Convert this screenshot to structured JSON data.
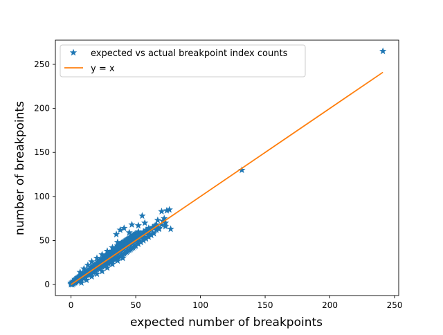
{
  "chart_data": {
    "type": "scatter",
    "title": "",
    "xlabel": "expected number of breakpoints",
    "ylabel": "number of breakpoints",
    "xlim": [
      -12.1,
      253.2
    ],
    "ylim": [
      -12.5,
      277.5
    ],
    "xticks": [
      0,
      50,
      100,
      150,
      200,
      250
    ],
    "yticks": [
      0,
      50,
      100,
      150,
      200,
      250
    ],
    "grid": false,
    "legend_position": "top-left",
    "colors": {
      "scatter": "#1f77b4",
      "line": "#ff7f0e"
    },
    "series": [
      {
        "name": "expected vs actual breakpoint index counts",
        "kind": "scatter",
        "marker": "star",
        "points": [
          [
            0,
            0
          ],
          [
            0,
            1
          ],
          [
            0,
            2
          ],
          [
            1,
            0
          ],
          [
            1,
            1
          ],
          [
            1,
            2
          ],
          [
            1,
            3
          ],
          [
            2,
            1
          ],
          [
            2,
            2
          ],
          [
            2,
            3
          ],
          [
            2,
            4
          ],
          [
            3,
            2
          ],
          [
            3,
            3
          ],
          [
            3,
            4
          ],
          [
            3,
            6
          ],
          [
            4,
            3
          ],
          [
            4,
            4
          ],
          [
            4,
            5
          ],
          [
            4,
            7
          ],
          [
            5,
            4
          ],
          [
            5,
            5
          ],
          [
            5,
            6
          ],
          [
            5,
            8
          ],
          [
            6,
            5
          ],
          [
            6,
            6
          ],
          [
            6,
            7
          ],
          [
            6,
            9
          ],
          [
            7,
            6
          ],
          [
            7,
            7
          ],
          [
            7,
            8
          ],
          [
            7,
            10
          ],
          [
            8,
            6
          ],
          [
            8,
            8
          ],
          [
            8,
            9
          ],
          [
            8,
            11
          ],
          [
            9,
            7
          ],
          [
            9,
            9
          ],
          [
            9,
            10
          ],
          [
            9,
            12
          ],
          [
            10,
            8
          ],
          [
            10,
            10
          ],
          [
            10,
            11
          ],
          [
            10,
            13
          ],
          [
            11,
            9
          ],
          [
            11,
            11
          ],
          [
            11,
            12
          ],
          [
            11,
            14
          ],
          [
            12,
            10
          ],
          [
            12,
            12
          ],
          [
            12,
            13
          ],
          [
            12,
            15
          ],
          [
            13,
            11
          ],
          [
            13,
            13
          ],
          [
            13,
            14
          ],
          [
            13,
            16
          ],
          [
            14,
            12
          ],
          [
            14,
            14
          ],
          [
            14,
            15
          ],
          [
            14,
            17
          ],
          [
            15,
            12
          ],
          [
            15,
            15
          ],
          [
            15,
            16
          ],
          [
            15,
            18
          ],
          [
            16,
            13
          ],
          [
            16,
            16
          ],
          [
            16,
            18
          ],
          [
            16,
            20
          ],
          [
            17,
            14
          ],
          [
            17,
            17
          ],
          [
            17,
            19
          ],
          [
            17,
            21
          ],
          [
            18,
            15
          ],
          [
            18,
            18
          ],
          [
            18,
            20
          ],
          [
            18,
            22
          ],
          [
            19,
            16
          ],
          [
            19,
            19
          ],
          [
            19,
            21
          ],
          [
            19,
            23
          ],
          [
            20,
            17
          ],
          [
            20,
            20
          ],
          [
            20,
            22
          ],
          [
            20,
            24
          ],
          [
            21,
            18
          ],
          [
            21,
            21
          ],
          [
            21,
            23
          ],
          [
            21,
            26
          ],
          [
            22,
            18
          ],
          [
            22,
            22
          ],
          [
            22,
            24
          ],
          [
            22,
            27
          ],
          [
            23,
            19
          ],
          [
            23,
            23
          ],
          [
            23,
            25
          ],
          [
            23,
            28
          ],
          [
            24,
            20
          ],
          [
            24,
            24
          ],
          [
            24,
            26
          ],
          [
            24,
            29
          ],
          [
            25,
            21
          ],
          [
            25,
            25
          ],
          [
            25,
            27
          ],
          [
            25,
            30
          ],
          [
            26,
            22
          ],
          [
            26,
            26
          ],
          [
            26,
            28
          ],
          [
            26,
            31
          ],
          [
            27,
            23
          ],
          [
            27,
            27
          ],
          [
            27,
            30
          ],
          [
            27,
            33
          ],
          [
            28,
            24
          ],
          [
            28,
            28
          ],
          [
            28,
            31
          ],
          [
            28,
            34
          ],
          [
            29,
            24
          ],
          [
            29,
            29
          ],
          [
            29,
            32
          ],
          [
            29,
            35
          ],
          [
            30,
            25
          ],
          [
            30,
            30
          ],
          [
            30,
            33
          ],
          [
            30,
            36
          ],
          [
            31,
            26
          ],
          [
            31,
            31
          ],
          [
            31,
            34
          ],
          [
            31,
            37
          ],
          [
            32,
            27
          ],
          [
            32,
            32
          ],
          [
            32,
            35
          ],
          [
            32,
            38
          ],
          [
            33,
            28
          ],
          [
            33,
            33
          ],
          [
            33,
            36
          ],
          [
            33,
            40
          ],
          [
            34,
            29
          ],
          [
            34,
            34
          ],
          [
            34,
            37
          ],
          [
            34,
            41
          ],
          [
            35,
            30
          ],
          [
            35,
            35
          ],
          [
            35,
            38
          ],
          [
            35,
            42
          ],
          [
            36,
            30
          ],
          [
            36,
            36
          ],
          [
            36,
            40
          ],
          [
            36,
            44
          ],
          [
            37,
            31
          ],
          [
            37,
            37
          ],
          [
            37,
            41
          ],
          [
            37,
            45
          ],
          [
            38,
            32
          ],
          [
            38,
            38
          ],
          [
            38,
            42
          ],
          [
            38,
            46
          ],
          [
            39,
            33
          ],
          [
            39,
            39
          ],
          [
            39,
            43
          ],
          [
            39,
            47
          ],
          [
            40,
            34
          ],
          [
            40,
            40
          ],
          [
            40,
            44
          ],
          [
            40,
            48
          ],
          [
            41,
            35
          ],
          [
            41,
            41
          ],
          [
            41,
            45
          ],
          [
            41,
            49
          ],
          [
            42,
            36
          ],
          [
            42,
            42
          ],
          [
            42,
            46
          ],
          [
            42,
            50
          ],
          [
            43,
            37
          ],
          [
            43,
            43
          ],
          [
            43,
            47
          ],
          [
            43,
            51
          ],
          [
            44,
            38
          ],
          [
            44,
            44
          ],
          [
            44,
            48
          ],
          [
            44,
            52
          ],
          [
            45,
            39
          ],
          [
            45,
            45
          ],
          [
            45,
            49
          ],
          [
            45,
            53
          ],
          [
            46,
            40
          ],
          [
            46,
            46
          ],
          [
            46,
            50
          ],
          [
            46,
            54
          ],
          [
            47,
            41
          ],
          [
            47,
            47
          ],
          [
            47,
            51
          ],
          [
            47,
            55
          ],
          [
            48,
            42
          ],
          [
            48,
            48
          ],
          [
            48,
            52
          ],
          [
            48,
            56
          ],
          [
            49,
            43
          ],
          [
            49,
            49
          ],
          [
            49,
            53
          ],
          [
            49,
            57
          ],
          [
            50,
            44
          ],
          [
            50,
            50
          ],
          [
            50,
            54
          ],
          [
            50,
            58
          ],
          [
            52,
            46
          ],
          [
            52,
            52
          ],
          [
            52,
            56
          ],
          [
            52,
            60
          ],
          [
            54,
            48
          ],
          [
            54,
            54
          ],
          [
            54,
            58
          ],
          [
            56,
            50
          ],
          [
            56,
            56
          ],
          [
            56,
            60
          ],
          [
            58,
            52
          ],
          [
            58,
            58
          ],
          [
            58,
            62
          ],
          [
            60,
            54
          ],
          [
            60,
            60
          ],
          [
            60,
            64
          ],
          [
            62,
            56
          ],
          [
            62,
            62
          ],
          [
            64,
            58
          ],
          [
            64,
            64
          ],
          [
            66,
            62
          ],
          [
            66,
            66
          ],
          [
            68,
            64
          ],
          [
            70,
            68
          ],
          [
            7,
            14
          ],
          [
            10,
            18
          ],
          [
            13,
            22
          ],
          [
            16,
            26
          ],
          [
            20,
            30
          ],
          [
            24,
            34
          ],
          [
            28,
            38
          ],
          [
            32,
            42
          ],
          [
            36,
            48
          ],
          [
            8,
            2
          ],
          [
            12,
            5
          ],
          [
            16,
            9
          ],
          [
            20,
            12
          ],
          [
            24,
            15
          ],
          [
            28,
            19
          ],
          [
            32,
            23
          ],
          [
            36,
            27
          ],
          [
            40,
            30
          ],
          [
            35,
            57
          ],
          [
            38,
            62
          ],
          [
            41,
            64
          ],
          [
            45,
            59
          ],
          [
            48,
            55
          ],
          [
            52,
            50
          ],
          [
            56,
            54
          ],
          [
            60,
            57
          ],
          [
            47,
            68
          ],
          [
            52,
            67
          ],
          [
            55,
            78
          ],
          [
            57,
            70
          ],
          [
            60,
            62
          ],
          [
            63,
            65
          ],
          [
            65,
            67
          ],
          [
            67,
            73
          ],
          [
            68,
            63
          ],
          [
            70,
            83
          ],
          [
            71,
            72
          ],
          [
            72,
            75
          ],
          [
            73,
            70
          ],
          [
            74,
            84
          ],
          [
            76,
            85
          ],
          [
            77,
            63
          ],
          [
            73,
            66
          ],
          [
            66,
            68
          ],
          [
            132,
            130
          ],
          [
            241,
            265
          ]
        ]
      },
      {
        "name": "y = x",
        "kind": "line",
        "x": [
          0,
          241
        ],
        "y": [
          0,
          241
        ]
      }
    ]
  }
}
